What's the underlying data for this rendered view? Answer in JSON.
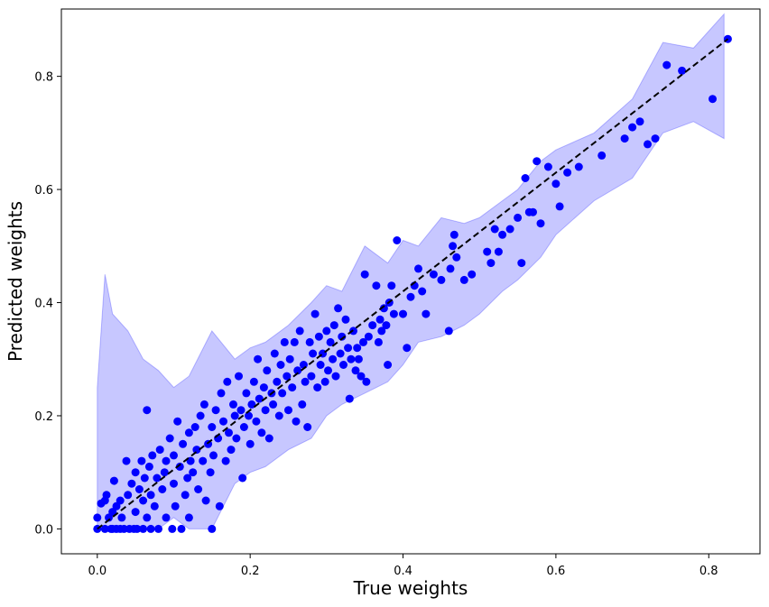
{
  "chart_data": {
    "type": "scatter",
    "title": "",
    "xlabel": "True weights",
    "ylabel": "Predicted weights",
    "xlim": [
      -0.047,
      0.867
    ],
    "ylim": [
      -0.044,
      0.919
    ],
    "xticks": [
      0.0,
      0.2,
      0.4,
      0.6,
      0.8
    ],
    "yticks": [
      0.0,
      0.2,
      0.4,
      0.6,
      0.8
    ],
    "xtick_labels": [
      "0.0",
      "0.2",
      "0.4",
      "0.6",
      "0.8"
    ],
    "ytick_labels": [
      "0.0",
      "0.2",
      "0.4",
      "0.6",
      "0.8"
    ],
    "grid": false,
    "colors": {
      "points": "#0000ff",
      "band": "#0000ff",
      "identity_line": "#000000"
    },
    "reference_line": {
      "style": "dashed",
      "from": [
        0.0,
        0.0
      ],
      "to": [
        0.825,
        0.866
      ]
    },
    "uncertainty_band": {
      "x": [
        0.0,
        0.01,
        0.02,
        0.04,
        0.06,
        0.08,
        0.1,
        0.12,
        0.15,
        0.18,
        0.2,
        0.22,
        0.25,
        0.28,
        0.3,
        0.32,
        0.35,
        0.38,
        0.4,
        0.42,
        0.45,
        0.48,
        0.5,
        0.53,
        0.55,
        0.58,
        0.6,
        0.65,
        0.7,
        0.74,
        0.78,
        0.82
      ],
      "lower": [
        0.0,
        0.0,
        0.0,
        0.0,
        0.0,
        0.0,
        0.02,
        0.0,
        0.0,
        0.08,
        0.1,
        0.11,
        0.14,
        0.16,
        0.2,
        0.22,
        0.24,
        0.26,
        0.29,
        0.33,
        0.34,
        0.36,
        0.38,
        0.42,
        0.44,
        0.48,
        0.52,
        0.58,
        0.62,
        0.7,
        0.72,
        0.69
      ],
      "upper": [
        0.25,
        0.45,
        0.38,
        0.35,
        0.3,
        0.28,
        0.25,
        0.27,
        0.35,
        0.3,
        0.32,
        0.33,
        0.36,
        0.4,
        0.43,
        0.42,
        0.5,
        0.47,
        0.51,
        0.5,
        0.55,
        0.54,
        0.55,
        0.58,
        0.6,
        0.65,
        0.67,
        0.7,
        0.76,
        0.86,
        0.85,
        0.91
      ]
    },
    "series": [
      {
        "points": [
          [
            0.0,
            0.0
          ],
          [
            0.0,
            0.02
          ],
          [
            0.005,
            0.045
          ],
          [
            0.01,
            0.0
          ],
          [
            0.01,
            0.05
          ],
          [
            0.012,
            0.06
          ],
          [
            0.015,
            0.02
          ],
          [
            0.018,
            0.0
          ],
          [
            0.02,
            0.03
          ],
          [
            0.02,
            0.0
          ],
          [
            0.022,
            0.085
          ],
          [
            0.025,
            0.0
          ],
          [
            0.025,
            0.04
          ],
          [
            0.03,
            0.05
          ],
          [
            0.03,
            0.0
          ],
          [
            0.032,
            0.02
          ],
          [
            0.035,
            0.0
          ],
          [
            0.038,
            0.12
          ],
          [
            0.04,
            0.06
          ],
          [
            0.042,
            0.0
          ],
          [
            0.045,
            0.08
          ],
          [
            0.048,
            0.0
          ],
          [
            0.05,
            0.1
          ],
          [
            0.05,
            0.03
          ],
          [
            0.052,
            0.0
          ],
          [
            0.055,
            0.07
          ],
          [
            0.058,
            0.12
          ],
          [
            0.06,
            0.0
          ],
          [
            0.06,
            0.05
          ],
          [
            0.062,
            0.09
          ],
          [
            0.065,
            0.21
          ],
          [
            0.065,
            0.02
          ],
          [
            0.068,
            0.11
          ],
          [
            0.07,
            0.0
          ],
          [
            0.07,
            0.06
          ],
          [
            0.072,
            0.13
          ],
          [
            0.075,
            0.04
          ],
          [
            0.078,
            0.09
          ],
          [
            0.08,
            0.0
          ],
          [
            0.082,
            0.14
          ],
          [
            0.085,
            0.07
          ],
          [
            0.088,
            0.1
          ],
          [
            0.09,
            0.02
          ],
          [
            0.09,
            0.12
          ],
          [
            0.095,
            0.16
          ],
          [
            0.098,
            0.0
          ],
          [
            0.1,
            0.08
          ],
          [
            0.1,
            0.13
          ],
          [
            0.102,
            0.04
          ],
          [
            0.105,
            0.19
          ],
          [
            0.108,
            0.11
          ],
          [
            0.11,
            0.0
          ],
          [
            0.112,
            0.15
          ],
          [
            0.115,
            0.06
          ],
          [
            0.118,
            0.09
          ],
          [
            0.12,
            0.17
          ],
          [
            0.12,
            0.02
          ],
          [
            0.122,
            0.12
          ],
          [
            0.125,
            0.1
          ],
          [
            0.128,
            0.18
          ],
          [
            0.13,
            0.14
          ],
          [
            0.132,
            0.07
          ],
          [
            0.135,
            0.2
          ],
          [
            0.138,
            0.12
          ],
          [
            0.14,
            0.22
          ],
          [
            0.142,
            0.05
          ],
          [
            0.145,
            0.15
          ],
          [
            0.148,
            0.1
          ],
          [
            0.15,
            0.0
          ],
          [
            0.15,
            0.18
          ],
          [
            0.152,
            0.13
          ],
          [
            0.155,
            0.21
          ],
          [
            0.158,
            0.16
          ],
          [
            0.16,
            0.04
          ],
          [
            0.162,
            0.24
          ],
          [
            0.165,
            0.19
          ],
          [
            0.168,
            0.12
          ],
          [
            0.17,
            0.26
          ],
          [
            0.172,
            0.17
          ],
          [
            0.175,
            0.14
          ],
          [
            0.178,
            0.22
          ],
          [
            0.18,
            0.2
          ],
          [
            0.182,
            0.16
          ],
          [
            0.185,
            0.27
          ],
          [
            0.188,
            0.21
          ],
          [
            0.19,
            0.09
          ],
          [
            0.192,
            0.18
          ],
          [
            0.195,
            0.24
          ],
          [
            0.198,
            0.2
          ],
          [
            0.2,
            0.15
          ],
          [
            0.202,
            0.22
          ],
          [
            0.205,
            0.26
          ],
          [
            0.208,
            0.19
          ],
          [
            0.21,
            0.3
          ],
          [
            0.212,
            0.23
          ],
          [
            0.215,
            0.17
          ],
          [
            0.218,
            0.25
          ],
          [
            0.22,
            0.21
          ],
          [
            0.222,
            0.28
          ],
          [
            0.225,
            0.16
          ],
          [
            0.228,
            0.24
          ],
          [
            0.23,
            0.22
          ],
          [
            0.232,
            0.31
          ],
          [
            0.235,
            0.26
          ],
          [
            0.238,
            0.2
          ],
          [
            0.24,
            0.29
          ],
          [
            0.242,
            0.24
          ],
          [
            0.245,
            0.33
          ],
          [
            0.248,
            0.27
          ],
          [
            0.25,
            0.21
          ],
          [
            0.252,
            0.3
          ],
          [
            0.255,
            0.25
          ],
          [
            0.258,
            0.33
          ],
          [
            0.26,
            0.19
          ],
          [
            0.262,
            0.28
          ],
          [
            0.265,
            0.35
          ],
          [
            0.268,
            0.22
          ],
          [
            0.27,
            0.29
          ],
          [
            0.272,
            0.26
          ],
          [
            0.275,
            0.18
          ],
          [
            0.278,
            0.33
          ],
          [
            0.28,
            0.27
          ],
          [
            0.282,
            0.31
          ],
          [
            0.285,
            0.38
          ],
          [
            0.288,
            0.25
          ],
          [
            0.29,
            0.34
          ],
          [
            0.292,
            0.29
          ],
          [
            0.295,
            0.31
          ],
          [
            0.298,
            0.26
          ],
          [
            0.3,
            0.35
          ],
          [
            0.302,
            0.28
          ],
          [
            0.305,
            0.33
          ],
          [
            0.308,
            0.3
          ],
          [
            0.31,
            0.36
          ],
          [
            0.312,
            0.27
          ],
          [
            0.315,
            0.39
          ],
          [
            0.318,
            0.31
          ],
          [
            0.32,
            0.34
          ],
          [
            0.322,
            0.29
          ],
          [
            0.325,
            0.37
          ],
          [
            0.328,
            0.32
          ],
          [
            0.33,
            0.23
          ],
          [
            0.332,
            0.3
          ],
          [
            0.335,
            0.35
          ],
          [
            0.338,
            0.28
          ],
          [
            0.34,
            0.32
          ],
          [
            0.342,
            0.3
          ],
          [
            0.345,
            0.27
          ],
          [
            0.348,
            0.33
          ],
          [
            0.35,
            0.45
          ],
          [
            0.352,
            0.26
          ],
          [
            0.355,
            0.34
          ],
          [
            0.36,
            0.36
          ],
          [
            0.365,
            0.43
          ],
          [
            0.368,
            0.33
          ],
          [
            0.37,
            0.37
          ],
          [
            0.372,
            0.35
          ],
          [
            0.375,
            0.39
          ],
          [
            0.378,
            0.36
          ],
          [
            0.38,
            0.29
          ],
          [
            0.382,
            0.4
          ],
          [
            0.385,
            0.43
          ],
          [
            0.388,
            0.38
          ],
          [
            0.392,
            0.51
          ],
          [
            0.4,
            0.38
          ],
          [
            0.405,
            0.32
          ],
          [
            0.41,
            0.41
          ],
          [
            0.415,
            0.43
          ],
          [
            0.42,
            0.46
          ],
          [
            0.425,
            0.42
          ],
          [
            0.43,
            0.38
          ],
          [
            0.44,
            0.45
          ],
          [
            0.45,
            0.44
          ],
          [
            0.46,
            0.35
          ],
          [
            0.462,
            0.46
          ],
          [
            0.465,
            0.5
          ],
          [
            0.467,
            0.52
          ],
          [
            0.47,
            0.48
          ],
          [
            0.48,
            0.44
          ],
          [
            0.49,
            0.45
          ],
          [
            0.51,
            0.49
          ],
          [
            0.515,
            0.47
          ],
          [
            0.52,
            0.53
          ],
          [
            0.525,
            0.49
          ],
          [
            0.53,
            0.52
          ],
          [
            0.54,
            0.53
          ],
          [
            0.55,
            0.55
          ],
          [
            0.555,
            0.47
          ],
          [
            0.56,
            0.62
          ],
          [
            0.565,
            0.56
          ],
          [
            0.57,
            0.56
          ],
          [
            0.575,
            0.65
          ],
          [
            0.58,
            0.54
          ],
          [
            0.59,
            0.64
          ],
          [
            0.6,
            0.61
          ],
          [
            0.605,
            0.57
          ],
          [
            0.615,
            0.63
          ],
          [
            0.63,
            0.64
          ],
          [
            0.66,
            0.66
          ],
          [
            0.69,
            0.69
          ],
          [
            0.7,
            0.71
          ],
          [
            0.71,
            0.72
          ],
          [
            0.72,
            0.68
          ],
          [
            0.73,
            0.69
          ],
          [
            0.745,
            0.82
          ],
          [
            0.765,
            0.81
          ],
          [
            0.805,
            0.76
          ],
          [
            0.825,
            0.866
          ]
        ]
      }
    ]
  }
}
